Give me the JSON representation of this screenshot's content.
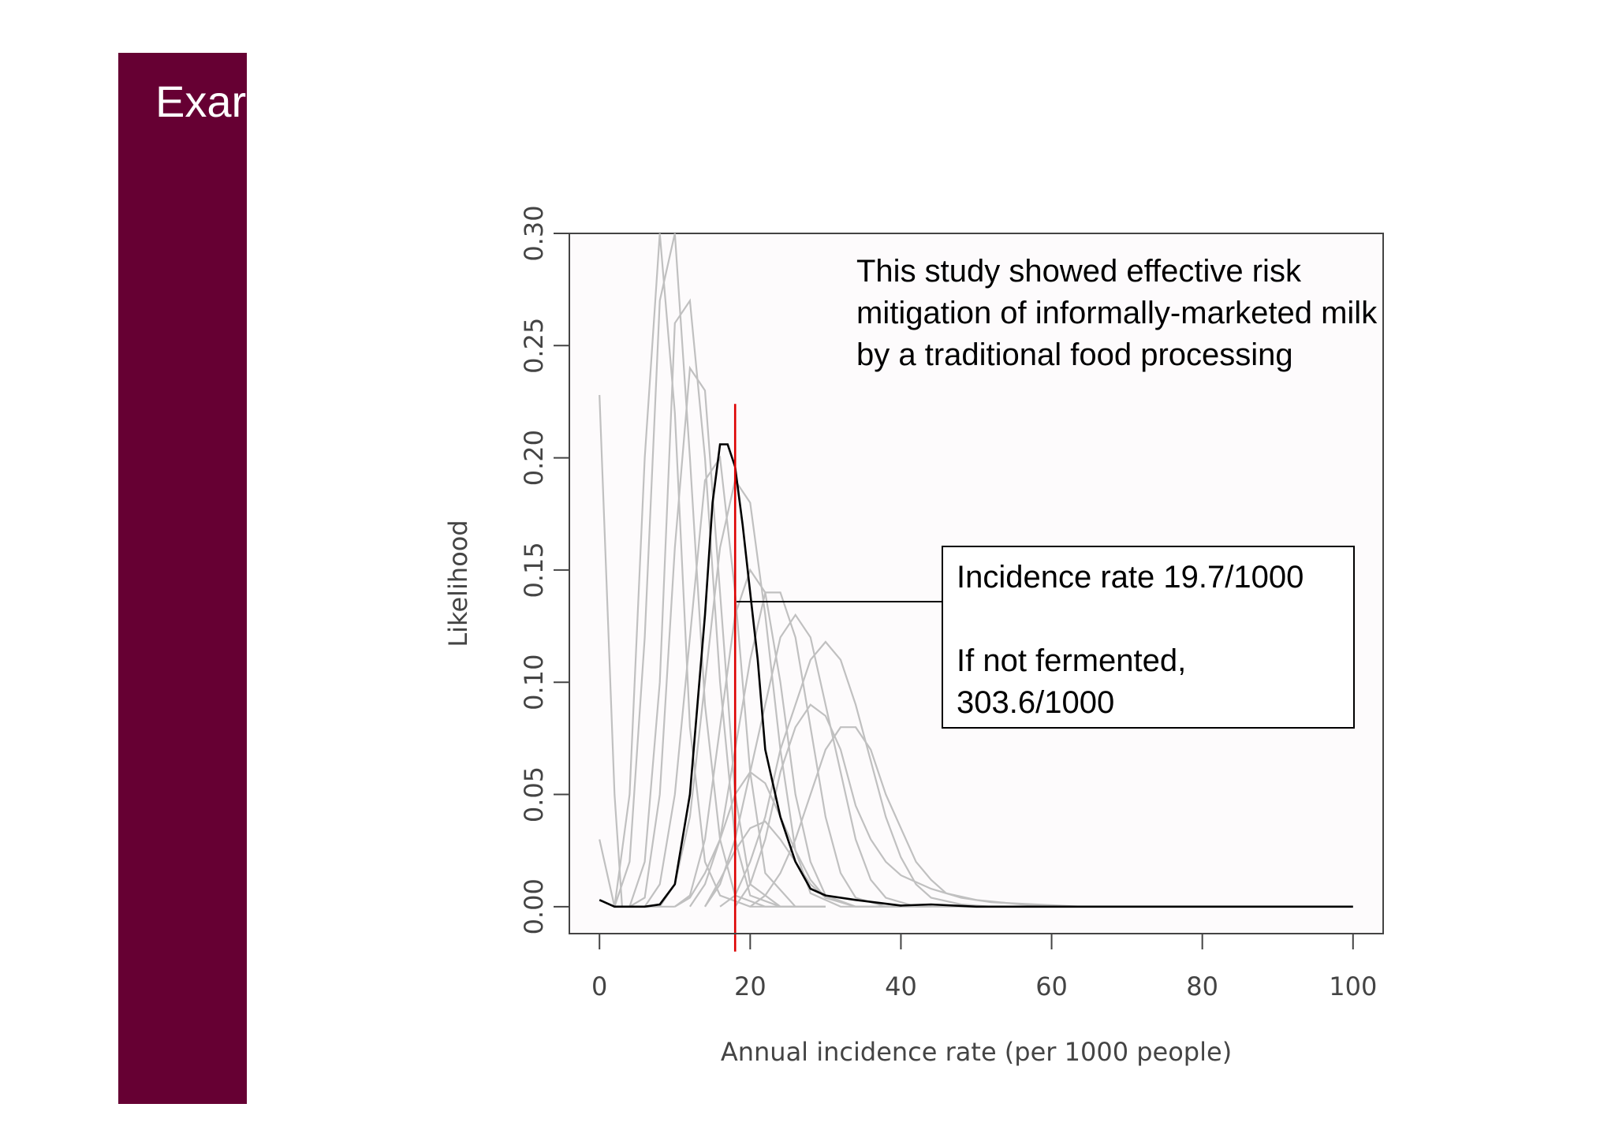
{
  "slide": {
    "title": "Exar",
    "accent_color": "#660033"
  },
  "chart_data": {
    "type": "line",
    "xlabel": "Annual incidence rate (per 1000 people)",
    "ylabel": "Likelihood",
    "xlim": [
      -4,
      104
    ],
    "ylim": [
      -0.012,
      0.3
    ],
    "x_ticks": [
      0,
      20,
      40,
      60,
      80,
      100
    ],
    "x_tick_labels": [
      "0",
      "20",
      "40",
      "60",
      "80",
      "100"
    ],
    "y_ticks": [
      0.0,
      0.05,
      0.1,
      0.15,
      0.2,
      0.25,
      0.3
    ],
    "y_tick_labels": [
      "0.00",
      "0.05",
      "0.10",
      "0.15",
      "0.20",
      "0.25",
      "0.30"
    ],
    "reference_line": {
      "x": 18,
      "y_from": -0.02,
      "y_to": 0.224,
      "color": "#dd0000"
    },
    "main_series": {
      "name": "combined likelihood",
      "color": "#000000",
      "points": [
        [
          0,
          0.003
        ],
        [
          2,
          0.0
        ],
        [
          4,
          0.0
        ],
        [
          6,
          0.0
        ],
        [
          8,
          0.001
        ],
        [
          10,
          0.01
        ],
        [
          12,
          0.05
        ],
        [
          14,
          0.13
        ],
        [
          15,
          0.18
        ],
        [
          16,
          0.206
        ],
        [
          17,
          0.206
        ],
        [
          18,
          0.196
        ],
        [
          19,
          0.17
        ],
        [
          20,
          0.14
        ],
        [
          21,
          0.11
        ],
        [
          22,
          0.07
        ],
        [
          24,
          0.04
        ],
        [
          26,
          0.02
        ],
        [
          28,
          0.008
        ],
        [
          30,
          0.005
        ],
        [
          34,
          0.003
        ],
        [
          40,
          0.0005
        ],
        [
          44,
          0.001
        ],
        [
          50,
          0.0
        ],
        [
          60,
          0.0
        ],
        [
          80,
          0.0
        ],
        [
          100,
          0.0
        ]
      ]
    },
    "background_series": {
      "color": "#c0c0c0",
      "series": [
        [
          [
            0,
            0.228
          ],
          [
            2,
            0.05
          ],
          [
            3,
            0.0
          ],
          [
            4,
            0.0
          ],
          [
            6,
            0.0
          ],
          [
            10,
            0.0
          ]
        ],
        [
          [
            0,
            0.03
          ],
          [
            2,
            0.0
          ],
          [
            4,
            0.05
          ],
          [
            6,
            0.2
          ],
          [
            8,
            0.3
          ],
          [
            10,
            0.22
          ],
          [
            12,
            0.08
          ],
          [
            14,
            0.02
          ],
          [
            16,
            0.005
          ],
          [
            20,
            0.0
          ],
          [
            26,
            0.0
          ]
        ],
        [
          [
            2,
            0.0
          ],
          [
            4,
            0.02
          ],
          [
            6,
            0.12
          ],
          [
            8,
            0.27
          ],
          [
            10,
            0.3
          ],
          [
            12,
            0.2
          ],
          [
            14,
            0.09
          ],
          [
            16,
            0.03
          ],
          [
            18,
            0.005
          ],
          [
            22,
            0.0
          ],
          [
            30,
            0.0
          ]
        ],
        [
          [
            4,
            0.0
          ],
          [
            6,
            0.02
          ],
          [
            8,
            0.1
          ],
          [
            10,
            0.26
          ],
          [
            12,
            0.27
          ],
          [
            14,
            0.2
          ],
          [
            16,
            0.1
          ],
          [
            18,
            0.03
          ],
          [
            20,
            0.005
          ],
          [
            24,
            0.0
          ],
          [
            30,
            0.0
          ]
        ],
        [
          [
            4,
            0.0
          ],
          [
            6,
            0.004
          ],
          [
            8,
            0.05
          ],
          [
            10,
            0.16
          ],
          [
            12,
            0.24
          ],
          [
            14,
            0.23
          ],
          [
            16,
            0.14
          ],
          [
            18,
            0.05
          ],
          [
            20,
            0.01
          ],
          [
            24,
            0.0
          ],
          [
            30,
            0.0
          ]
        ],
        [
          [
            6,
            0.0
          ],
          [
            8,
            0.01
          ],
          [
            10,
            0.05
          ],
          [
            12,
            0.12
          ],
          [
            14,
            0.19
          ],
          [
            16,
            0.2
          ],
          [
            18,
            0.14
          ],
          [
            20,
            0.06
          ],
          [
            22,
            0.015
          ],
          [
            26,
            0.0
          ],
          [
            30,
            0.0
          ]
        ],
        [
          [
            8,
            0.0
          ],
          [
            10,
            0.01
          ],
          [
            12,
            0.04
          ],
          [
            14,
            0.1
          ],
          [
            16,
            0.16
          ],
          [
            18,
            0.19
          ],
          [
            20,
            0.18
          ],
          [
            22,
            0.13
          ],
          [
            24,
            0.07
          ],
          [
            26,
            0.025
          ],
          [
            28,
            0.006
          ],
          [
            32,
            0.0
          ],
          [
            40,
            0.0
          ]
        ],
        [
          [
            10,
            0.0
          ],
          [
            12,
            0.005
          ],
          [
            14,
            0.03
          ],
          [
            16,
            0.08
          ],
          [
            18,
            0.13
          ],
          [
            20,
            0.15
          ],
          [
            22,
            0.14
          ],
          [
            24,
            0.1
          ],
          [
            26,
            0.05
          ],
          [
            28,
            0.02
          ],
          [
            30,
            0.005
          ],
          [
            34,
            0.0
          ],
          [
            40,
            0.0
          ]
        ],
        [
          [
            12,
            0.0
          ],
          [
            14,
            0.01
          ],
          [
            16,
            0.03
          ],
          [
            18,
            0.07
          ],
          [
            20,
            0.11
          ],
          [
            22,
            0.14
          ],
          [
            24,
            0.14
          ],
          [
            26,
            0.12
          ],
          [
            28,
            0.08
          ],
          [
            30,
            0.04
          ],
          [
            32,
            0.015
          ],
          [
            34,
            0.004
          ],
          [
            38,
            0.0
          ],
          [
            44,
            0.0
          ]
        ],
        [
          [
            14,
            0.0
          ],
          [
            16,
            0.01
          ],
          [
            18,
            0.03
          ],
          [
            20,
            0.06
          ],
          [
            22,
            0.09
          ],
          [
            24,
            0.12
          ],
          [
            26,
            0.13
          ],
          [
            28,
            0.12
          ],
          [
            30,
            0.09
          ],
          [
            32,
            0.06
          ],
          [
            34,
            0.03
          ],
          [
            36,
            0.012
          ],
          [
            38,
            0.004
          ],
          [
            42,
            0.0
          ],
          [
            50,
            0.0
          ]
        ],
        [
          [
            16,
            0.0
          ],
          [
            18,
            0.005
          ],
          [
            20,
            0.02
          ],
          [
            22,
            0.04
          ],
          [
            24,
            0.07
          ],
          [
            26,
            0.09
          ],
          [
            28,
            0.11
          ],
          [
            30,
            0.118
          ],
          [
            32,
            0.11
          ],
          [
            34,
            0.09
          ],
          [
            36,
            0.065
          ],
          [
            38,
            0.04
          ],
          [
            40,
            0.022
          ],
          [
            42,
            0.01
          ],
          [
            44,
            0.004
          ],
          [
            48,
            0.001
          ],
          [
            52,
            0.0
          ],
          [
            60,
            0.0
          ]
        ],
        [
          [
            20,
            0.0
          ],
          [
            22,
            0.005
          ],
          [
            24,
            0.015
          ],
          [
            26,
            0.03
          ],
          [
            28,
            0.05
          ],
          [
            30,
            0.07
          ],
          [
            32,
            0.08
          ],
          [
            34,
            0.08
          ],
          [
            36,
            0.07
          ],
          [
            38,
            0.05
          ],
          [
            40,
            0.035
          ],
          [
            42,
            0.02
          ],
          [
            44,
            0.012
          ],
          [
            46,
            0.006
          ],
          [
            50,
            0.003
          ],
          [
            56,
            0.001
          ],
          [
            62,
            0.0
          ],
          [
            70,
            0.0
          ]
        ],
        [
          [
            18,
            0.0
          ],
          [
            20,
            0.01
          ],
          [
            22,
            0.03
          ],
          [
            24,
            0.06
          ],
          [
            26,
            0.08
          ],
          [
            28,
            0.09
          ],
          [
            30,
            0.085
          ],
          [
            32,
            0.07
          ],
          [
            34,
            0.045
          ],
          [
            36,
            0.03
          ],
          [
            38,
            0.02
          ],
          [
            40,
            0.014
          ],
          [
            44,
            0.008
          ],
          [
            48,
            0.004
          ],
          [
            52,
            0.002
          ],
          [
            58,
            0.001
          ],
          [
            64,
            0.0
          ],
          [
            70,
            0.0
          ]
        ],
        [
          [
            10,
            0.0
          ],
          [
            12,
            0.004
          ],
          [
            14,
            0.015
          ],
          [
            16,
            0.03
          ],
          [
            18,
            0.05
          ],
          [
            20,
            0.06
          ],
          [
            22,
            0.055
          ],
          [
            24,
            0.04
          ],
          [
            26,
            0.025
          ],
          [
            28,
            0.012
          ],
          [
            30,
            0.004
          ],
          [
            34,
            0.0
          ],
          [
            40,
            0.0
          ]
        ],
        [
          [
            14,
            0.0
          ],
          [
            16,
            0.012
          ],
          [
            18,
            0.025
          ],
          [
            20,
            0.035
          ],
          [
            22,
            0.038
          ],
          [
            24,
            0.03
          ],
          [
            26,
            0.02
          ],
          [
            28,
            0.01
          ],
          [
            30,
            0.004
          ],
          [
            34,
            0.0
          ],
          [
            40,
            0.0
          ]
        ]
      ]
    },
    "annotation": "This study showed effective risk mitigation of informally-marketed milk by a traditional food processing",
    "callout": {
      "line1": "Incidence rate 19.7/1000",
      "line2": "If not fermented,",
      "line3": "303.6/1000"
    }
  }
}
